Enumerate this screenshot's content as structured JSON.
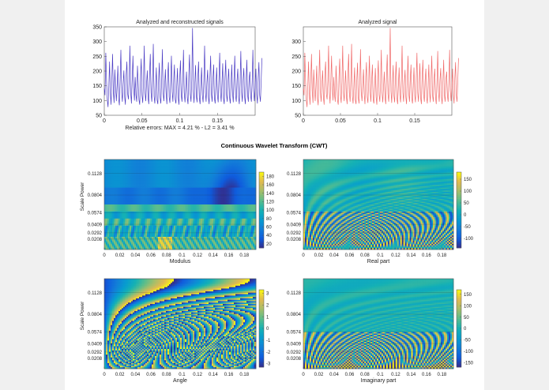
{
  "title": "Continuous Wavelet Transform (CWT)",
  "colors": {
    "background": "#f0f0f0",
    "figure": "#ffffff",
    "recon": "#4b3cc4",
    "analyzed": "#f06a6a",
    "colormap": "parula"
  },
  "chart_data": [
    {
      "type": "line",
      "title": "Analyzed and reconstructed signals",
      "xlabel": "Relative errors:  MAX = 4.21 %  -  L2 = 3.41 %",
      "ylabel": "",
      "xlim": [
        0,
        0.2
      ],
      "ylim": [
        50,
        350
      ],
      "xticks": [
        0,
        0.05,
        0.1,
        0.15
      ],
      "xtick_labels": [
        "0",
        "0.05",
        "0.1",
        "0.15"
      ],
      "yticks": [
        50,
        100,
        150,
        200,
        250,
        300,
        350
      ],
      "ytick_labels": [
        "50",
        "100",
        "150",
        "200",
        "250",
        "300",
        "350"
      ],
      "series": [
        {
          "color": "#4b3cc4",
          "x_start": 0,
          "x_step": 0.001,
          "values": [
            140,
            118,
            262,
            168,
            102,
            78,
            145,
            232,
            128,
            86,
            170,
            258,
            132,
            92,
            205,
            142,
            98,
            150,
            218,
            108,
            84,
            176,
            272,
            128,
            96,
            158,
            202,
            112,
            86,
            188,
            232,
            122,
            104,
            166,
            286,
            128,
            90,
            170,
            252,
            142,
            100,
            180,
            118,
            96,
            218,
            158,
            102,
            86,
            180,
            242,
            118,
            92,
            168,
            286,
            128,
            98,
            156,
            202,
            112,
            88,
            188,
            258,
            126,
            96,
            168,
            292,
            116,
            90,
            148,
            212,
            102,
            88,
            170,
            228,
            110,
            90,
            162,
            274,
            128,
            98,
            150,
            206,
            122,
            88,
            178,
            230,
            112,
            92,
            162,
            252,
            130,
            96,
            170,
            222,
            104,
            90,
            148,
            210,
            112,
            86,
            176,
            236,
            120,
            96,
            160,
            272,
            126,
            94,
            146,
            198,
            110,
            88,
            186,
            256,
            122,
            96,
            172,
            346,
            132,
            92,
            158,
            220,
            116,
            94,
            176,
            232,
            108,
            88,
            150,
            212,
            118,
            94,
            168,
            286,
            128,
            96,
            160,
            204,
            112,
            88,
            178,
            252,
            122,
            96,
            172,
            222,
            108,
            90,
            150,
            212,
            118,
            94,
            172,
            262,
            128,
            96,
            160,
            226,
            108,
            88,
            178,
            238,
            120,
            96,
            166,
            208,
            112,
            90,
            150,
            222,
            126,
            94,
            176,
            252,
            118,
            96,
            168,
            208,
            112,
            88,
            162,
            268,
            128,
            96,
            170,
            210,
            112,
            88,
            168,
            238,
            118,
            96,
            172,
            198,
            118,
            96,
            160,
            272,
            132,
            98,
            150,
            208,
            120,
            90,
            176,
            230,
            118,
            96,
            168,
            244
          ]
        }
      ]
    },
    {
      "type": "line",
      "title": "Analyzed signal",
      "xlabel": "",
      "ylabel": "",
      "xlim": [
        0,
        0.2
      ],
      "ylim": [
        50,
        350
      ],
      "xticks": [
        0,
        0.05,
        0.1,
        0.15
      ],
      "xtick_labels": [
        "0",
        "0.05",
        "0.1",
        "0.15"
      ],
      "yticks": [
        50,
        100,
        150,
        200,
        250,
        300
      ],
      "ytick_labels": [
        "50",
        "100",
        "150",
        "200",
        "250",
        "300"
      ],
      "series": [
        {
          "color": "#f06a6a",
          "x_start": 0,
          "x_step": 0.001,
          "values": [
            140,
            118,
            262,
            168,
            102,
            78,
            145,
            232,
            128,
            86,
            170,
            258,
            132,
            92,
            205,
            142,
            98,
            150,
            218,
            108,
            84,
            176,
            272,
            128,
            96,
            158,
            202,
            112,
            86,
            188,
            232,
            122,
            104,
            166,
            286,
            128,
            90,
            170,
            252,
            142,
            100,
            180,
            118,
            96,
            218,
            158,
            102,
            86,
            180,
            242,
            118,
            92,
            168,
            286,
            128,
            98,
            156,
            202,
            112,
            88,
            188,
            258,
            126,
            96,
            168,
            292,
            116,
            90,
            148,
            212,
            102,
            88,
            170,
            228,
            110,
            90,
            162,
            274,
            128,
            98,
            150,
            206,
            122,
            88,
            178,
            230,
            112,
            92,
            162,
            252,
            130,
            96,
            170,
            222,
            104,
            90,
            148,
            210,
            112,
            86,
            176,
            236,
            120,
            96,
            160,
            272,
            126,
            94,
            146,
            198,
            110,
            88,
            186,
            256,
            122,
            96,
            172,
            346,
            132,
            92,
            158,
            220,
            116,
            94,
            176,
            232,
            108,
            88,
            150,
            212,
            118,
            94,
            168,
            286,
            128,
            96,
            160,
            204,
            112,
            88,
            178,
            252,
            122,
            96,
            172,
            222,
            108,
            90,
            150,
            212,
            118,
            94,
            172,
            262,
            128,
            96,
            160,
            226,
            108,
            88,
            178,
            238,
            120,
            96,
            166,
            208,
            112,
            90,
            150,
            222,
            126,
            94,
            176,
            252,
            118,
            96,
            168,
            208,
            112,
            88,
            162,
            268,
            128,
            96,
            170,
            210,
            112,
            88,
            168,
            238,
            118,
            96,
            172,
            198,
            118,
            96,
            160,
            272,
            132,
            98,
            150,
            208,
            120,
            90,
            176,
            230,
            118,
            96,
            168,
            244
          ]
        }
      ]
    },
    {
      "type": "heatmap",
      "title": "",
      "xlabel": "Modulus",
      "ylabel": "Scale Power",
      "pattern": "modulus",
      "xlim": [
        0,
        0.195
      ],
      "xticks": [
        0,
        0.02,
        0.04,
        0.06,
        0.08,
        0.1,
        0.12,
        0.14,
        0.16,
        0.18
      ],
      "xtick_labels": [
        "0",
        "0.02",
        "0.04",
        "0.06",
        "0.08",
        "0.1",
        "0.12",
        "0.14",
        "0.16",
        "0.18"
      ],
      "ytick_labels": [
        "0.1128",
        "0.0804",
        "0.0574",
        "0.0409",
        "0.0292",
        "0.0208"
      ],
      "clim": [
        10,
        190
      ],
      "cbar_ticks": [
        20,
        40,
        60,
        80,
        100,
        120,
        140,
        160,
        180
      ],
      "cbar_labels": [
        "20",
        "40",
        "60",
        "80",
        "100",
        "120",
        "140",
        "160",
        "180"
      ]
    },
    {
      "type": "heatmap",
      "title": "",
      "xlabel": "Real part",
      "ylabel": "",
      "pattern": "real",
      "xlim": [
        0,
        0.195
      ],
      "xticks": [
        0,
        0.02,
        0.04,
        0.06,
        0.08,
        0.1,
        0.12,
        0.14,
        0.16,
        0.18
      ],
      "xtick_labels": [
        "0",
        "0.02",
        "0.04",
        "0.06",
        "0.08",
        "0.1",
        "0.12",
        "0.14",
        "0.16",
        "0.18"
      ],
      "ytick_labels": [
        "0.1128",
        "0.0804",
        "0.0574",
        "0.0409",
        "0.0292",
        "0.0208"
      ],
      "clim": [
        -140,
        180
      ],
      "cbar_ticks": [
        -100,
        -50,
        0,
        50,
        100,
        150
      ],
      "cbar_labels": [
        "-100",
        "-50",
        "0",
        "50",
        "100",
        "150"
      ]
    },
    {
      "type": "heatmap",
      "title": "",
      "xlabel": "Angle",
      "ylabel": "Scale Power",
      "pattern": "angle",
      "xlim": [
        0,
        0.195
      ],
      "xticks": [
        0,
        0.02,
        0.04,
        0.06,
        0.08,
        0.1,
        0.12,
        0.14,
        0.16,
        0.18
      ],
      "xtick_labels": [
        "0",
        "0.02",
        "0.04",
        "0.06",
        "0.08",
        "0.1",
        "0.12",
        "0.14",
        "0.16",
        "0.18"
      ],
      "ytick_labels": [
        "0.1128",
        "0.0804",
        "0.0574",
        "0.0409",
        "0.0292",
        "0.0208"
      ],
      "clim": [
        -3.3,
        3.3
      ],
      "cbar_ticks": [
        -3,
        -2,
        -1,
        0,
        1,
        2,
        3
      ],
      "cbar_labels": [
        "-3",
        "-2",
        "-1",
        "0",
        "1",
        "2",
        "3"
      ]
    },
    {
      "type": "heatmap",
      "title": "",
      "xlabel": "Imaginary part",
      "ylabel": "",
      "pattern": "imag",
      "xlim": [
        0,
        0.195
      ],
      "xticks": [
        0,
        0.02,
        0.04,
        0.06,
        0.08,
        0.1,
        0.12,
        0.14,
        0.16,
        0.18
      ],
      "xtick_labels": [
        "0",
        "0.02",
        "0.04",
        "0.06",
        "0.08",
        "0.1",
        "0.12",
        "0.14",
        "0.16",
        "0.18"
      ],
      "ytick_labels": [
        "0.1128",
        "0.0804",
        "0.0574",
        "0.0409",
        "0.0292",
        "0.0208"
      ],
      "clim": [
        -170,
        170
      ],
      "cbar_ticks": [
        -150,
        -100,
        -50,
        0,
        50,
        100,
        150
      ],
      "cbar_labels": [
        "-150",
        "-100",
        "-50",
        "0",
        "50",
        "100",
        "150"
      ]
    }
  ]
}
